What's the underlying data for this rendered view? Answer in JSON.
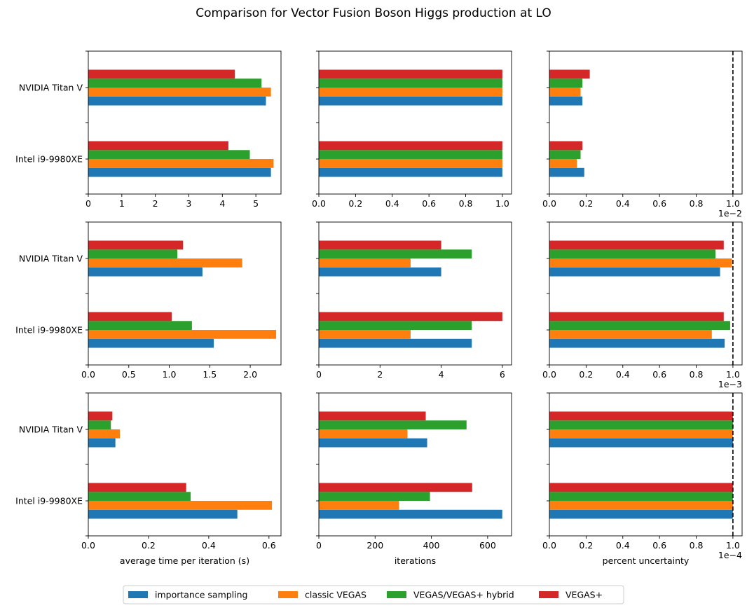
{
  "chart_data": {
    "type": "bar",
    "title": "Comparison for Vector Fusion Boson Higgs production at LO",
    "categories": [
      "Intel i9-9980XE",
      "NVIDIA Titan V"
    ],
    "series_names": [
      "importance sampling",
      "classic VEGAS",
      "VEGAS/VEGAS+ hybrid",
      "VEGAS+"
    ],
    "colors": {
      "importance sampling": "#1f77b4",
      "classic VEGAS": "#ff7f0e",
      "VEGAS/VEGAS+ hybrid": "#2ca02c",
      "VEGAS+": "#d62728"
    },
    "legend": {
      "placement": "bottom-center",
      "columns": 4
    },
    "column_xlabels": [
      "average time per iteration (s)",
      "iterations",
      "percent uncertainty"
    ],
    "panels": [
      {
        "row": 0,
        "col": 0,
        "xlim": [
          0,
          5.75
        ],
        "xticks": [
          "0",
          "1",
          "2",
          "3",
          "4",
          "5"
        ],
        "xtick_values": [
          0,
          1,
          2,
          3,
          4,
          5
        ],
        "series": [
          {
            "name": "importance sampling",
            "values": [
              5.45,
              5.3
            ]
          },
          {
            "name": "classic VEGAS",
            "values": [
              5.53,
              5.45
            ]
          },
          {
            "name": "VEGAS/VEGAS+ hybrid",
            "values": [
              4.82,
              5.17
            ]
          },
          {
            "name": "VEGAS+",
            "values": [
              4.18,
              4.37
            ]
          }
        ]
      },
      {
        "row": 0,
        "col": 1,
        "xlim": [
          0,
          1.05
        ],
        "xticks": [
          "0.0",
          "0.2",
          "0.4",
          "0.6",
          "0.8",
          "1.0"
        ],
        "xtick_values": [
          0,
          0.2,
          0.4,
          0.6,
          0.8,
          1.0
        ],
        "series": [
          {
            "name": "importance sampling",
            "values": [
              1.0,
              1.0
            ]
          },
          {
            "name": "classic VEGAS",
            "values": [
              1.0,
              1.0
            ]
          },
          {
            "name": "VEGAS/VEGAS+ hybrid",
            "values": [
              1.0,
              1.0
            ]
          },
          {
            "name": "VEGAS+",
            "values": [
              1.0,
              1.0
            ]
          }
        ]
      },
      {
        "row": 0,
        "col": 2,
        "xlim": [
          0,
          1.05
        ],
        "offset_text": "1e−2",
        "vline": 1.0,
        "xticks": [
          "0.0",
          "0.2",
          "0.4",
          "0.6",
          "0.8",
          "1.0"
        ],
        "xtick_values": [
          0,
          0.2,
          0.4,
          0.6,
          0.8,
          1.0
        ],
        "series": [
          {
            "name": "importance sampling",
            "values": [
              0.19,
              0.18
            ]
          },
          {
            "name": "classic VEGAS",
            "values": [
              0.15,
              0.17
            ]
          },
          {
            "name": "VEGAS/VEGAS+ hybrid",
            "values": [
              0.17,
              0.18
            ]
          },
          {
            "name": "VEGAS+",
            "values": [
              0.18,
              0.22
            ]
          }
        ]
      },
      {
        "row": 1,
        "col": 0,
        "xlim": [
          0,
          2.38
        ],
        "xticks": [
          "0.0",
          "0.5",
          "1.0",
          "1.5",
          "2.0"
        ],
        "xtick_values": [
          0,
          0.5,
          1.0,
          1.5,
          2.0
        ],
        "series": [
          {
            "name": "importance sampling",
            "values": [
              1.55,
              1.41
            ]
          },
          {
            "name": "classic VEGAS",
            "values": [
              2.32,
              1.9
            ]
          },
          {
            "name": "VEGAS/VEGAS+ hybrid",
            "values": [
              1.28,
              1.1
            ]
          },
          {
            "name": "VEGAS+",
            "values": [
              1.03,
              1.17
            ]
          }
        ]
      },
      {
        "row": 1,
        "col": 1,
        "xlim": [
          0,
          6.3
        ],
        "xticks": [
          "0",
          "2",
          "4",
          "6"
        ],
        "xtick_values": [
          0,
          2,
          4,
          6
        ],
        "series": [
          {
            "name": "importance sampling",
            "values": [
              5,
              4
            ]
          },
          {
            "name": "classic VEGAS",
            "values": [
              3,
              3
            ]
          },
          {
            "name": "VEGAS/VEGAS+ hybrid",
            "values": [
              5,
              5
            ]
          },
          {
            "name": "VEGAS+",
            "values": [
              6,
              4
            ]
          }
        ]
      },
      {
        "row": 1,
        "col": 2,
        "xlim": [
          0,
          1.05
        ],
        "offset_text": "1e−3",
        "vline": 1.0,
        "xticks": [
          "0.0",
          "0.2",
          "0.4",
          "0.6",
          "0.8",
          "1.0"
        ],
        "xtick_values": [
          0,
          0.2,
          0.4,
          0.6,
          0.8,
          1.0
        ],
        "series": [
          {
            "name": "importance sampling",
            "values": [
              0.955,
              0.93
            ]
          },
          {
            "name": "classic VEGAS",
            "values": [
              0.885,
              0.995
            ]
          },
          {
            "name": "VEGAS/VEGAS+ hybrid",
            "values": [
              0.985,
              0.905
            ]
          },
          {
            "name": "VEGAS+",
            "values": [
              0.95,
              0.95
            ]
          }
        ]
      },
      {
        "row": 2,
        "col": 0,
        "xlim": [
          0,
          0.64
        ],
        "xticks": [
          "0.0",
          "0.2",
          "0.4",
          "0.6"
        ],
        "xtick_values": [
          0,
          0.2,
          0.4,
          0.6
        ],
        "series": [
          {
            "name": "importance sampling",
            "values": [
              0.495,
              0.09
            ]
          },
          {
            "name": "classic VEGAS",
            "values": [
              0.61,
              0.105
            ]
          },
          {
            "name": "VEGAS/VEGAS+ hybrid",
            "values": [
              0.34,
              0.075
            ]
          },
          {
            "name": "VEGAS+",
            "values": [
              0.325,
              0.08
            ]
          }
        ]
      },
      {
        "row": 2,
        "col": 1,
        "xlim": [
          0,
          685
        ],
        "xticks": [
          "0",
          "200",
          "400",
          "600"
        ],
        "xtick_values": [
          0,
          200,
          400,
          600
        ],
        "series": [
          {
            "name": "importance sampling",
            "values": [
              652,
              385
            ]
          },
          {
            "name": "classic VEGAS",
            "values": [
              285,
              315
            ]
          },
          {
            "name": "VEGAS/VEGAS+ hybrid",
            "values": [
              395,
              525
            ]
          },
          {
            "name": "VEGAS+",
            "values": [
              545,
              380
            ]
          }
        ]
      },
      {
        "row": 2,
        "col": 2,
        "xlim": [
          0,
          1.05
        ],
        "offset_text": "1e−4",
        "vline": 1.0,
        "xticks": [
          "0.0",
          "0.2",
          "0.4",
          "0.6",
          "0.8",
          "1.0"
        ],
        "xtick_values": [
          0,
          0.2,
          0.4,
          0.6,
          0.8,
          1.0
        ],
        "series": [
          {
            "name": "importance sampling",
            "values": [
              1.0,
              1.0
            ]
          },
          {
            "name": "classic VEGAS",
            "values": [
              1.0,
              1.0
            ]
          },
          {
            "name": "VEGAS/VEGAS+ hybrid",
            "values": [
              1.0,
              1.0
            ]
          },
          {
            "name": "VEGAS+",
            "values": [
              1.0,
              1.0
            ]
          }
        ]
      }
    ]
  }
}
